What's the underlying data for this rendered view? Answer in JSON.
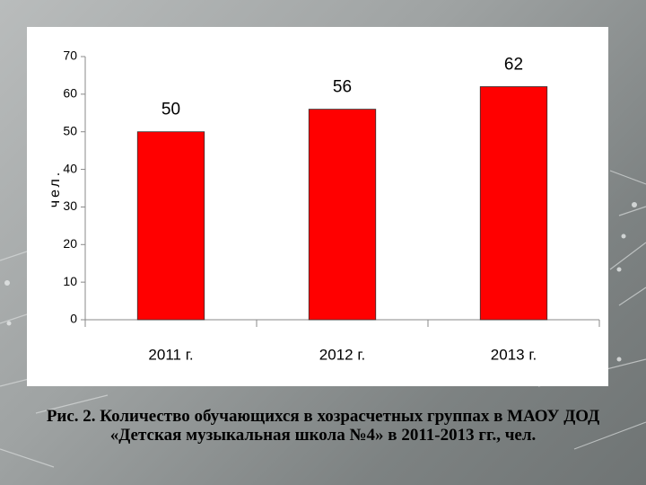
{
  "chart_data": {
    "type": "bar",
    "y_label": "чел.",
    "categories": [
      "2011 г.",
      "2012 г.",
      "2013 г."
    ],
    "values": [
      50,
      56,
      62
    ],
    "color": "#ff0000",
    "ylim": [
      0,
      70
    ],
    "yticks": [
      0,
      10,
      20,
      30,
      40,
      50,
      60,
      70
    ],
    "grid": false,
    "caption": "Рис. 2. Количество обучающихся в хозрасчетных группах в МАОУ ДОД «Детская музыкальная школа №4» в 2011-2013 гг., чел."
  }
}
